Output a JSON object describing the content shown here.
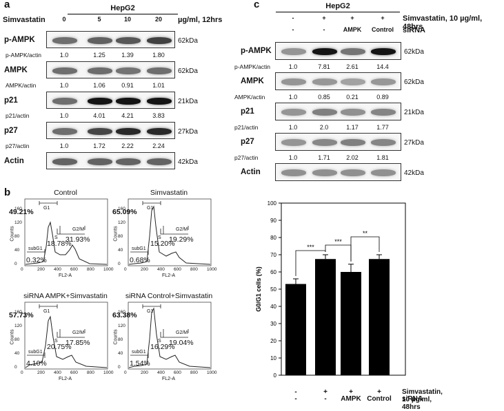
{
  "panel_a": {
    "label": "a",
    "header": "HepG2",
    "treatment_label": "Simvastatin",
    "doses": [
      "0",
      "5",
      "10",
      "20"
    ],
    "unit": "µg/ml, 12hrs",
    "blots": [
      {
        "name": "p-AMPK",
        "kda": "62kDa",
        "ratio_label": "p-AMPK/actin",
        "ratios": [
          "1.0",
          "1.25",
          "1.39",
          "1.80"
        ]
      },
      {
        "name": "AMPK",
        "kda": "62kDa",
        "ratio_label": "AMPK/actin",
        "ratios": [
          "1.0",
          "1.06",
          "0.91",
          "1.01"
        ]
      },
      {
        "name": "p21",
        "kda": "21kDa",
        "ratio_label": "p21/actin",
        "ratios": [
          "1.0",
          "4.01",
          "4.21",
          "3.83"
        ]
      },
      {
        "name": "p27",
        "kda": "27kDa",
        "ratio_label": "p27/actin",
        "ratios": [
          "1.0",
          "1.72",
          "2.22",
          "2.24"
        ]
      },
      {
        "name": "Actin",
        "kda": "42kDa",
        "ratio_label": "",
        "ratios": []
      }
    ]
  },
  "panel_c": {
    "label": "c",
    "header": "HepG2",
    "simva_row": [
      "-",
      "+",
      "+",
      "+"
    ],
    "simva_label": "Simvastatin, 10 µg/ml, 48hrs",
    "sirna_row": [
      "-",
      "-",
      "AMPK",
      "Control"
    ],
    "sirna_label": "siRNA",
    "blots": [
      {
        "name": "p-AMPK",
        "kda": "62kDa",
        "ratio_label": "p-AMPK/actin",
        "ratios": [
          "1.0",
          "7.81",
          "2.61",
          "14.4"
        ]
      },
      {
        "name": "AMPK",
        "kda": "62kDa",
        "ratio_label": "AMPK/actin",
        "ratios": [
          "1.0",
          "0.85",
          "0.21",
          "0.89"
        ]
      },
      {
        "name": "p21",
        "kda": "21kDa",
        "ratio_label": "p21/actin",
        "ratios": [
          "1.0",
          "2.0",
          "1.17",
          "1.77"
        ]
      },
      {
        "name": "p27",
        "kda": "27kDa",
        "ratio_label": "p27/actin",
        "ratios": [
          "1.0",
          "1.71",
          "2.02",
          "1.81"
        ]
      },
      {
        "name": "Actin",
        "kda": "42kDa",
        "ratio_label": "",
        "ratios": []
      }
    ]
  },
  "panel_b": {
    "label": "b",
    "x_axis_label": "FL2-A",
    "y_axis_label": "Counts",
    "x_ticks": [
      "0",
      "200",
      "400",
      "600",
      "800",
      "1000"
    ],
    "y_ticks": [
      "0",
      "40",
      "80",
      "120",
      "160"
    ],
    "gate_labels": {
      "g1": "G1",
      "s": "S",
      "g2m": "G2/M",
      "subg1": "subG1"
    },
    "histograms": [
      {
        "title": "Control",
        "g1": "49.21%",
        "s": "18.78%",
        "g2m": "31.93%",
        "subg1": "0.32%"
      },
      {
        "title": "Simvastatin",
        "g1": "65.09%",
        "s": "15.20%",
        "g2m": "19.29%",
        "subg1": "0.68%"
      },
      {
        "title": "siRNA  AMPK+Simvastatin",
        "g1": "57.73%",
        "s": "20.75%",
        "g2m": "17.85%",
        "subg1": "4.10%"
      },
      {
        "title": "siRNA Control+Simvastatin",
        "g1": "63.38%",
        "s": "16.29%",
        "g2m": "19.04%",
        "subg1": "1.54%"
      }
    ]
  },
  "chart_data": {
    "type": "bar",
    "ylabel": "G0/G1 cells (%)",
    "ylim": [
      0,
      100
    ],
    "yticks": [
      "0",
      "10",
      "20",
      "30",
      "40",
      "50",
      "60",
      "70",
      "80",
      "90",
      "100"
    ],
    "values": [
      53,
      67.5,
      60,
      67.5
    ],
    "errors": [
      3,
      2.5,
      4.5,
      2.5
    ],
    "simva_row": [
      "-",
      "+",
      "+",
      "+"
    ],
    "simva_label": "Simvastatin, 10 µg/ml, 48hrs",
    "sirna_row": [
      "-",
      "-",
      "AMPK",
      "Control"
    ],
    "sirna_label": "siRNA",
    "significance": [
      "***",
      "***",
      "**"
    ],
    "bar_color": "#000000"
  }
}
